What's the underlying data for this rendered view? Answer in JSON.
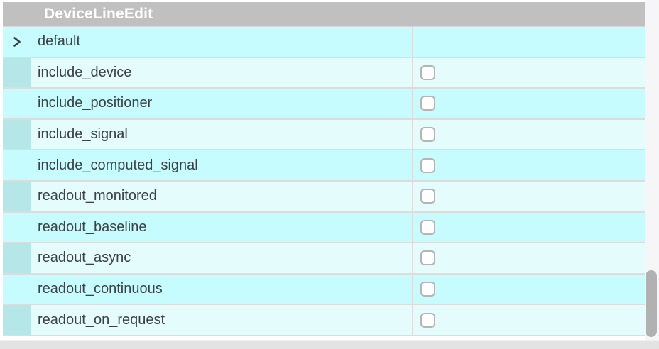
{
  "header": {
    "title": "DeviceLineEdit"
  },
  "colors": {
    "header_bg": "#c0c0c0",
    "row_dark": "#c6fcfd",
    "row_light": "#e4fcfc",
    "branch_teal": "#b6e7e8",
    "divider": "#dcdcdc",
    "text": "#3c4146",
    "scroll_thumb": "#b1b1b1",
    "scroll_track": "#f6f6f8",
    "bottom_bar": "#e3e3e4"
  },
  "rows": [
    {
      "label": "default",
      "shade": "dark",
      "expandable": true,
      "expand_icon": "chevron-right-icon",
      "has_checkbox": false,
      "checked": false
    },
    {
      "label": "include_device",
      "shade": "light",
      "expandable": false,
      "has_checkbox": true,
      "checked": false
    },
    {
      "label": "include_positioner",
      "shade": "dark",
      "expandable": false,
      "has_checkbox": true,
      "checked": false
    },
    {
      "label": "include_signal",
      "shade": "light",
      "expandable": false,
      "has_checkbox": true,
      "checked": false
    },
    {
      "label": "include_computed_signal",
      "shade": "dark",
      "expandable": false,
      "has_checkbox": true,
      "checked": false
    },
    {
      "label": "readout_monitored",
      "shade": "light",
      "expandable": false,
      "has_checkbox": true,
      "checked": false
    },
    {
      "label": "readout_baseline",
      "shade": "dark",
      "expandable": false,
      "has_checkbox": true,
      "checked": false
    },
    {
      "label": "readout_async",
      "shade": "light",
      "expandable": false,
      "has_checkbox": true,
      "checked": false
    },
    {
      "label": "readout_continuous",
      "shade": "dark",
      "expandable": false,
      "has_checkbox": true,
      "checked": false
    },
    {
      "label": "readout_on_request",
      "shade": "light",
      "expandable": false,
      "has_checkbox": true,
      "checked": false
    }
  ],
  "scrollbar": {
    "vertical_visible": true,
    "horizontal_visible": true
  }
}
